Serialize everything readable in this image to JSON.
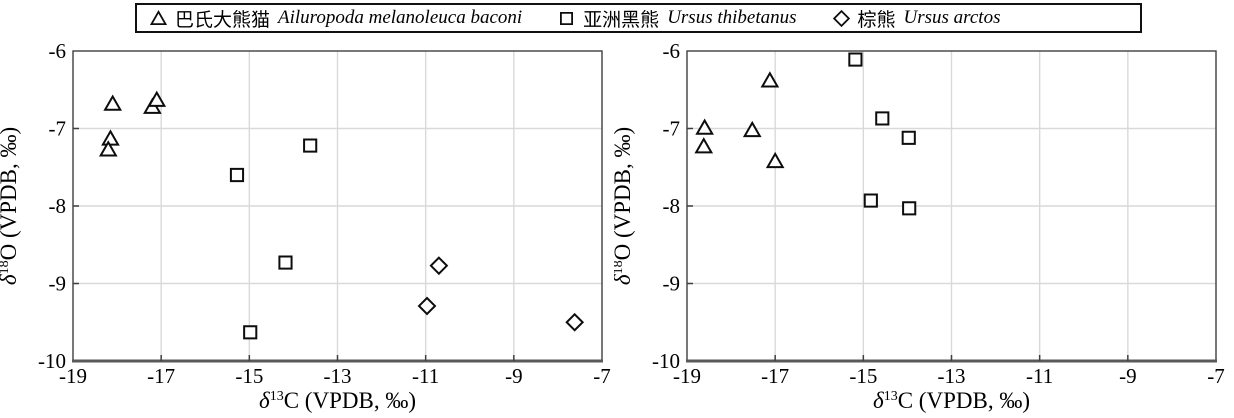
{
  "legend": {
    "items": [
      {
        "marker": "triangle",
        "cn": "巴氏大熊猫",
        "latin": "Ailuropoda melanoleuca baconi"
      },
      {
        "marker": "square",
        "cn": "亚洲黑熊",
        "latin": "Ursus thibetanus"
      },
      {
        "marker": "diamond",
        "cn": "棕熊",
        "latin": "Ursus arctos"
      }
    ]
  },
  "axis": {
    "delta": "δ",
    "x_sup": "13",
    "x_rest": "C (VPDB, ‰)",
    "y_sup": "18",
    "y_rest": "O (VPDB, ‰)"
  },
  "chart_data": [
    {
      "type": "scatter",
      "title": "",
      "xlabel": "δ13C (VPDB, ‰)",
      "ylabel": "δ18O (VPDB, ‰)",
      "xlim": [
        -19,
        -7
      ],
      "ylim": [
        -10,
        -6
      ],
      "xticks": [
        -19,
        -17,
        -15,
        -13,
        -11,
        -9,
        -7
      ],
      "yticks": [
        -10,
        -9,
        -8,
        -7,
        -6
      ],
      "grid": true,
      "legend_position": "top-center-shared",
      "series": [
        {
          "name": "巴氏大熊猫 Ailuropoda melanoleuca baconi",
          "marker": "triangle",
          "points": [
            [
              -18.1,
              -6.68
            ],
            [
              -17.2,
              -6.72
            ],
            [
              -17.1,
              -6.63
            ],
            [
              -18.15,
              -7.13
            ],
            [
              -18.2,
              -7.27
            ]
          ]
        },
        {
          "name": "亚洲黑熊 Ursus thibetanus",
          "marker": "square",
          "points": [
            [
              -15.28,
              -7.6
            ],
            [
              -13.62,
              -7.22
            ],
            [
              -14.18,
              -8.73
            ],
            [
              -14.98,
              -9.63
            ]
          ]
        },
        {
          "name": "棕熊 Ursus arctos",
          "marker": "diamond",
          "points": [
            [
              -10.7,
              -8.77
            ],
            [
              -10.97,
              -9.29
            ],
            [
              -7.62,
              -9.5
            ]
          ]
        }
      ]
    },
    {
      "type": "scatter",
      "title": "",
      "xlabel": "δ13C (VPDB, ‰)",
      "ylabel": "δ18O (VPDB, ‰)",
      "xlim": [
        -19,
        -7
      ],
      "ylim": [
        -10,
        -6
      ],
      "xticks": [
        -19,
        -17,
        -15,
        -13,
        -11,
        -9,
        -7
      ],
      "yticks": [
        -10,
        -9,
        -8,
        -7,
        -6
      ],
      "grid": true,
      "legend_position": "top-center-shared",
      "series": [
        {
          "name": "巴氏大熊猫 Ailuropoda melanoleuca baconi",
          "marker": "triangle",
          "points": [
            [
              -18.6,
              -6.99
            ],
            [
              -18.62,
              -7.23
            ],
            [
              -17.52,
              -7.02
            ],
            [
              -17.12,
              -6.38
            ],
            [
              -17.0,
              -7.42
            ]
          ]
        },
        {
          "name": "亚洲黑熊 Ursus thibetanus",
          "marker": "square",
          "points": [
            [
              -15.18,
              -6.11
            ],
            [
              -14.57,
              -6.87
            ],
            [
              -13.97,
              -7.12
            ],
            [
              -14.83,
              -7.93
            ],
            [
              -13.96,
              -8.03
            ]
          ]
        },
        {
          "name": "棕熊 Ursus arctos",
          "marker": "diamond",
          "points": []
        }
      ]
    }
  ]
}
